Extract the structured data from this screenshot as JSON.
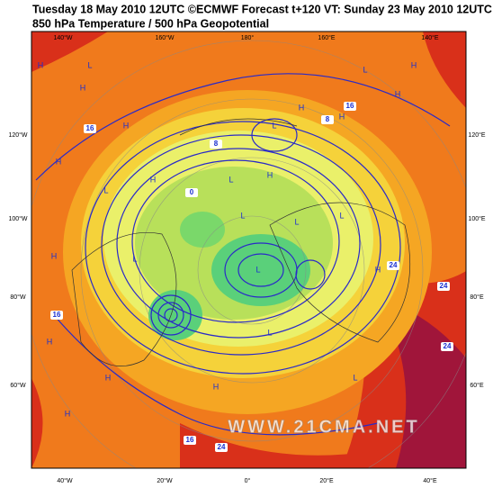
{
  "header": {
    "title": "Tuesday 18 May 2010 12UTC ©ECMWF Forecast t+120 VT: Sunday 23 May 2010 12UTC",
    "subtitle": "850 hPa Temperature / 500 hPa Geopotential"
  },
  "map": {
    "longitude_labels": {
      "top": [
        "140°W",
        "160°W",
        "180°",
        "160°E",
        "140°E"
      ],
      "left": [
        "120°W",
        "100°W",
        "80°W",
        "60°W"
      ],
      "right": [
        "120°E",
        "100°E",
        "80°E",
        "60°E"
      ],
      "bottom": [
        "40°W",
        "20°W",
        "0°",
        "20°E",
        "40°E"
      ]
    },
    "isotherm_labels": [
      "16",
      "0",
      "8",
      "8",
      "16",
      "24",
      "24",
      "16",
      "24",
      "16",
      "24"
    ],
    "pressure_centers": [
      "H",
      "H",
      "L",
      "H",
      "L",
      "H",
      "H",
      "L",
      "H",
      "H",
      "L",
      "H",
      "L",
      "H",
      "L",
      "L",
      "H",
      "L",
      "H",
      "H",
      "L",
      "H",
      "L",
      "H",
      "H",
      "L",
      "H",
      "L"
    ],
    "watermark": "WWW.21CMA.NET"
  }
}
